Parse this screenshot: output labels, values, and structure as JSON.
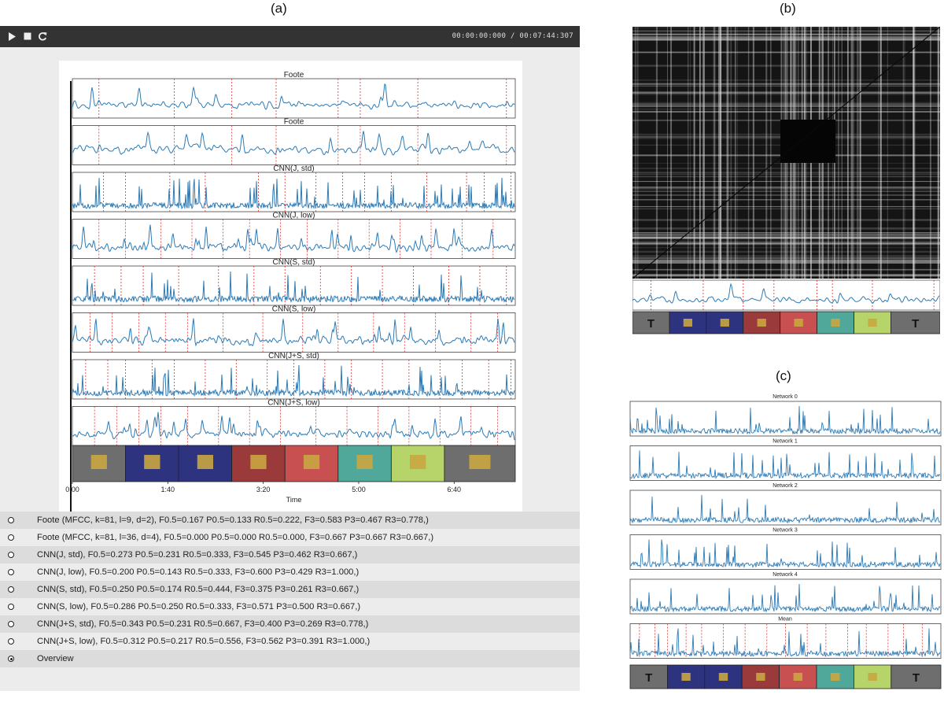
{
  "captions": {
    "a": "(a)",
    "b": "(b)",
    "c": "(c)"
  },
  "player": {
    "play_icon": "play-icon",
    "stop_icon": "stop-icon",
    "reload_icon": "reload-icon",
    "time_current": "00:00:00:000",
    "time_separator": "/",
    "time_total": "00:07:44:307"
  },
  "plot_a": {
    "rows": [
      {
        "title": "Foote"
      },
      {
        "title": "Foote"
      },
      {
        "title": "CNN(J, std)"
      },
      {
        "title": "CNN(J, low)"
      },
      {
        "title": "CNN(S, std)"
      },
      {
        "title": "CNN(S, low)"
      },
      {
        "title": "CNN(J+S, std)"
      },
      {
        "title": "CNN(J+S, low)"
      }
    ],
    "x_ticks": [
      "0:00",
      "1:40",
      "3:20",
      "5:00",
      "6:40"
    ],
    "xlabel": "Time",
    "annotation_colors": [
      "#6e6e6e",
      "#2e3380",
      "#2e3380",
      "#9b3a3a",
      "#c95050",
      "#4fa89a",
      "#b6d46a",
      "#6e6e6e"
    ],
    "line_color": "#2c7bb6",
    "boundary_color": "#e03030"
  },
  "methods": [
    {
      "label": "Foote (MFCC, k=81, l=9, d=2), F0.5=0.167 P0.5=0.133 R0.5=0.222, F3=0.583 P3=0.467 R3=0.778,)",
      "selected": false
    },
    {
      "label": "Foote (MFCC, k=81, l=36, d=4), F0.5=0.000 P0.5=0.000 R0.5=0.000, F3=0.667 P3=0.667 R3=0.667,)",
      "selected": false
    },
    {
      "label": "CNN(J, std), F0.5=0.273 P0.5=0.231 R0.5=0.333, F3=0.545 P3=0.462 R3=0.667,)",
      "selected": false
    },
    {
      "label": "CNN(J, low), F0.5=0.200 P0.5=0.143 R0.5=0.333, F3=0.600 P3=0.429 R3=1.000,)",
      "selected": false
    },
    {
      "label": "CNN(S, std), F0.5=0.250 P0.5=0.174 R0.5=0.444, F3=0.375 P3=0.261 R3=0.667,)",
      "selected": false
    },
    {
      "label": "CNN(S, low), F0.5=0.286 P0.5=0.250 R0.5=0.333, F3=0.571 P3=0.500 R3=0.667,)",
      "selected": false
    },
    {
      "label": "CNN(J+S, std), F0.5=0.343 P0.5=0.231 R0.5=0.667, F3=0.400 P3=0.269 R3=0.778,)",
      "selected": false
    },
    {
      "label": "CNN(J+S, low), F0.5=0.312 P0.5=0.217 R0.5=0.556, F3=0.562 P3=0.391 R3=1.000,)",
      "selected": false
    },
    {
      "label": "Overview",
      "selected": true
    }
  ],
  "panel_b": {
    "annotation_colors": [
      "#6e6e6e",
      "#2e3380",
      "#2e3380",
      "#9b3a3a",
      "#c95050",
      "#4fa89a",
      "#b6d46a",
      "#6e6e6e"
    ],
    "segment_labels": [
      "T",
      "",
      "",
      "",
      "",
      "",
      "",
      "T"
    ]
  },
  "panel_c": {
    "rows": [
      {
        "title": "Network 0"
      },
      {
        "title": "Network 1"
      },
      {
        "title": "Network 2"
      },
      {
        "title": "Network 3"
      },
      {
        "title": "Network 4"
      },
      {
        "title": "Mean"
      }
    ],
    "annotation_colors": [
      "#6e6e6e",
      "#2e3380",
      "#2e3380",
      "#9b3a3a",
      "#c95050",
      "#4fa89a",
      "#b6d46a",
      "#6e6e6e"
    ],
    "segment_labels": [
      "T",
      "",
      "",
      "",
      "",
      "",
      "",
      "T"
    ]
  }
}
